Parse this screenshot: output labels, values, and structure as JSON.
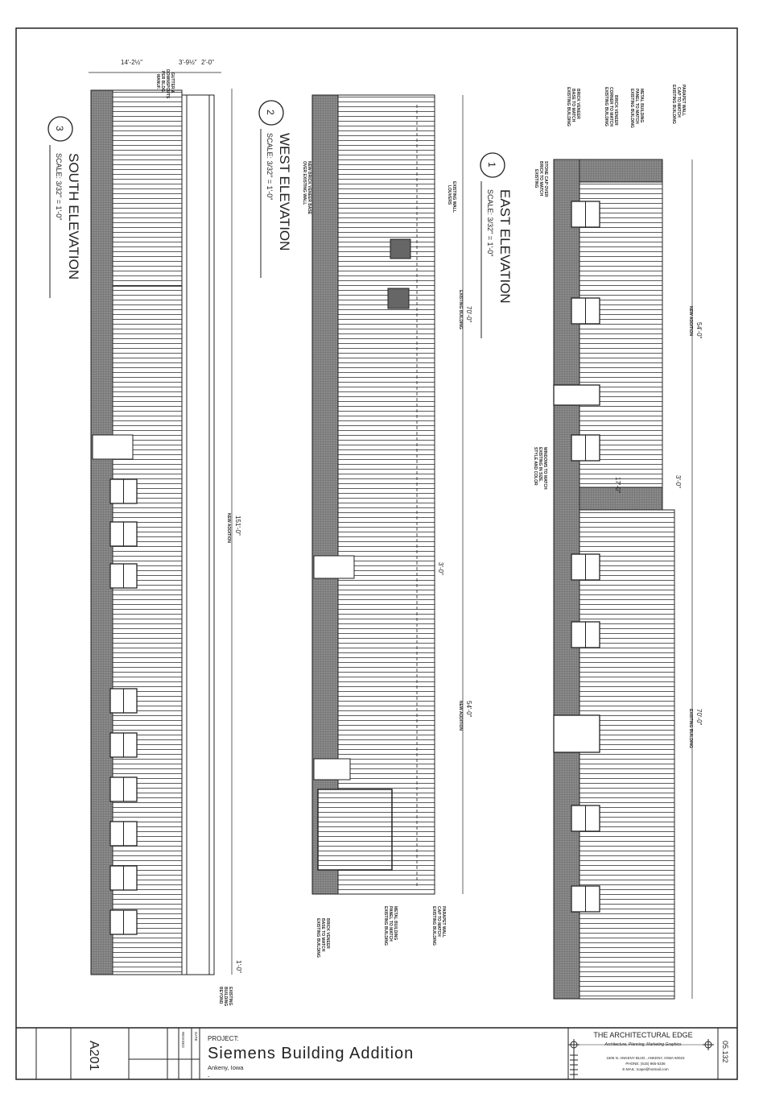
{
  "title_block": {
    "sheet_number": "A201",
    "project_label": "PROJECT:",
    "project_name": "Siemens Building Addition",
    "location": "Ankeny, Iowa",
    "location_line2": "-",
    "date_label": "DATE",
    "revised_label": "REVISED",
    "firm_name": "THE ARCHITECTURAL EDGE",
    "firm_tagline": "Architecture, Planning, Marketing Graphics",
    "firm_address": "1605 N. ANKENY BLVD., ANKENY, IOWA 50023",
    "firm_phone": "PHONE: (515) 965-5336",
    "firm_email": "E-MAIL: tcape@hotmail.com",
    "job_number": "05.132"
  },
  "east": {
    "number": "1",
    "title": "EAST ELEVATION",
    "scale": "SCALE: 3/32\" = 1'-0\"",
    "dim_new": "54'-0\"",
    "dim_new_label": "NEW ADDITION",
    "dim_existing": "70'-0\"",
    "dim_existing_label": "EXISTING BUILDING",
    "dim_17": "17'-0\"",
    "dim_3": "3'-0\"",
    "note_parapet": [
      "PARAPET WALL",
      "CAP TO MATCH",
      "EXISTING BUILDING"
    ],
    "note_metal": [
      "METAL BUILDING",
      "PANEL TO MATCH",
      "EXISTING BUILDING"
    ],
    "note_corner": [
      "BRICK VENEER",
      "CORNER TO MATCH",
      "EXISTING BUILDING"
    ],
    "note_base": [
      "BRICK VENEER",
      "BASE TO MATCH",
      "EXISTING BUILDING"
    ],
    "note_stone": [
      "STONE CAP OVER",
      "BRICK TO MATCH",
      "EXISTING"
    ],
    "note_windows": [
      "WINDOWS TO MATCH",
      "EXISTING IN SIZE,",
      "STYLE AND COLOR"
    ]
  },
  "west": {
    "number": "2",
    "title": "WEST ELEVATION",
    "scale": "SCALE: 3/32\" = 1'-0\"",
    "dim_existing": "70'-0\"",
    "dim_existing_label": "EXISTING BUILDING",
    "dim_new": "54'-0\"",
    "dim_new_label": "NEW ADDITION",
    "dim_3": "3'-0\"",
    "note_louvers": [
      "EXISTING WALL",
      "LOUVERS"
    ],
    "note_new_brick": [
      "NEW BRICK VENEER BASE",
      "OVER EXISTING WALL"
    ],
    "note_base": [
      "BRICK VENEER",
      "BASE TO MATCH",
      "EXISTING BUILDING"
    ],
    "note_metal": [
      "METAL BUILDING",
      "PANEL TO MATCH",
      "EXISTING BUILDING"
    ],
    "note_parapet": [
      "PARAPET WALL",
      "CAP TO MATCH",
      "EXISTING BUILDING"
    ]
  },
  "south": {
    "number": "3",
    "title": "SOUTH ELEVATION",
    "scale": "SCALE: 3/32\" = 1'-0\"",
    "dim_total": "151'-0\"",
    "dim_total_label": "NEW ADDITION",
    "dim_a": "14'-2½\"",
    "dim_b": "3'-9½\"",
    "dim_c": "2'-0\"",
    "dim_1": "1'-0\"",
    "note_gutter": [
      "GUTTER &",
      "DOWNSPOUTS",
      "PER BLDG.",
      "MANUF."
    ],
    "note_existing": [
      "EXISTING",
      "BUILDING",
      "BEYOND"
    ]
  },
  "colors": {
    "line": "#222222",
    "brick": "#6f6f6f",
    "paper": "#ffffff"
  }
}
